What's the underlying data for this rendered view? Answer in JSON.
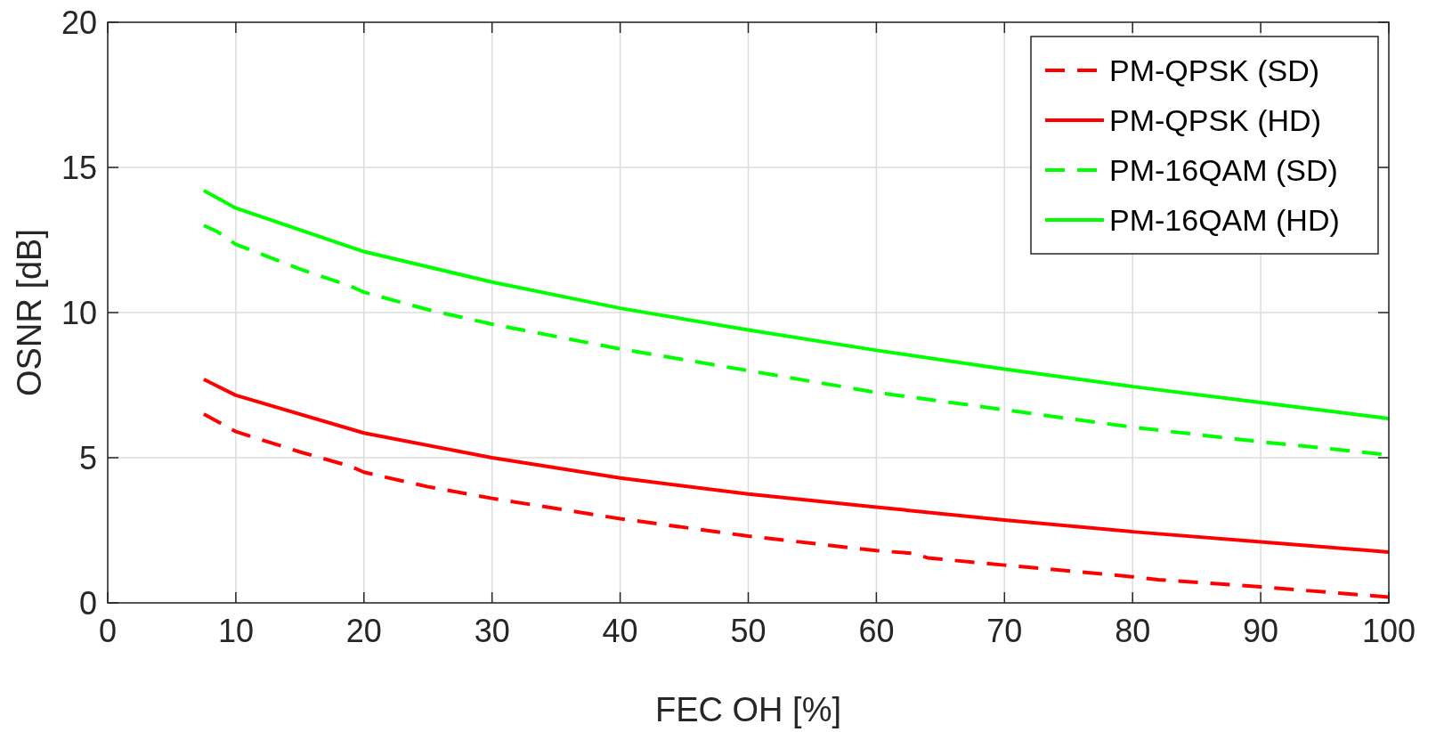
{
  "chart_data": {
    "type": "line",
    "xlabel": "FEC OH [%]",
    "ylabel": "OSNR [dB]",
    "xlim": [
      0,
      100
    ],
    "xticks": [
      0,
      10,
      20,
      30,
      40,
      50,
      60,
      70,
      80,
      90,
      100
    ],
    "ylim": [
      0,
      20
    ],
    "yticks": [
      0,
      5,
      10,
      15,
      20
    ],
    "grid": true,
    "legend": "top right",
    "series": [
      {
        "name": "PM-QPSK (SD)",
        "color": "#ff0000",
        "line_style": "dashed",
        "x": [
          7.5,
          10,
          15,
          19,
          20,
          25,
          30,
          40,
          50,
          60,
          63,
          64,
          70,
          80,
          82,
          90,
          100
        ],
        "values": [
          6.5,
          5.9,
          5.2,
          4.7,
          4.5,
          4.0,
          3.6,
          2.9,
          2.3,
          1.8,
          1.7,
          1.55,
          1.3,
          0.9,
          0.8,
          0.55,
          0.2
        ]
      },
      {
        "name": "PM-QPSK (HD)",
        "color": "#ff0000",
        "line_style": "solid",
        "x": [
          7.5,
          10,
          20,
          30,
          40,
          50,
          60,
          70,
          80,
          90,
          100
        ],
        "values": [
          7.7,
          7.15,
          5.85,
          5.0,
          4.3,
          3.75,
          3.3,
          2.85,
          2.45,
          2.1,
          1.75
        ]
      },
      {
        "name": "PM-16QAM (SD)",
        "color": "#00ff00",
        "line_style": "dashed",
        "x": [
          7.5,
          8.5,
          10,
          15,
          19,
          20,
          25,
          30,
          40,
          50,
          60,
          70,
          80,
          90,
          100
        ],
        "values": [
          13.0,
          12.8,
          12.35,
          11.5,
          10.9,
          10.7,
          10.1,
          9.6,
          8.75,
          8.0,
          7.25,
          6.65,
          6.05,
          5.55,
          5.1
        ]
      },
      {
        "name": "PM-16QAM (HD)",
        "color": "#00ff00",
        "line_style": "solid",
        "x": [
          7.5,
          10,
          20,
          30,
          40,
          50,
          60,
          70,
          80,
          90,
          100
        ],
        "values": [
          14.2,
          13.6,
          12.1,
          11.05,
          10.15,
          9.4,
          8.7,
          8.05,
          7.45,
          6.9,
          6.35
        ]
      }
    ]
  }
}
